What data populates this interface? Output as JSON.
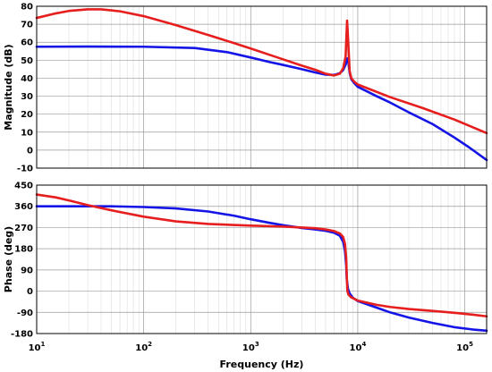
{
  "chart_data": {
    "type": "line",
    "title": "",
    "x_scale": "log",
    "x_range": [
      10,
      160000
    ],
    "xlabel": "Frequency  (Hz)",
    "x_ticks": [
      10,
      100,
      1000,
      10000,
      100000
    ],
    "x_tick_labels": [
      {
        "base": "10",
        "exp": "1"
      },
      {
        "base": "10",
        "exp": "2"
      },
      {
        "base": "10",
        "exp": "3"
      },
      {
        "base": "10",
        "exp": "4"
      },
      {
        "base": "10",
        "exp": "5"
      }
    ],
    "grid": true,
    "colors": {
      "blue": "#1414e6",
      "red": "#e61e1e"
    },
    "panels": [
      {
        "id": "magnitude",
        "ylabel": "Magnitude (dB)",
        "ylim": [
          -10,
          80
        ],
        "y_ticks": [
          -10,
          0,
          10,
          20,
          30,
          40,
          50,
          60,
          70,
          80
        ],
        "series": [
          {
            "color": "#1414e6",
            "points": [
              [
                10,
                57.5
              ],
              [
                30,
                57.6
              ],
              [
                100,
                57.5
              ],
              [
                300,
                56.8
              ],
              [
                600,
                54.5
              ],
              [
                1000,
                51.5
              ],
              [
                1500,
                49.0
              ],
              [
                2000,
                47.4
              ],
              [
                3000,
                45.0
              ],
              [
                4000,
                43.2
              ],
              [
                5000,
                42.0
              ],
              [
                6000,
                41.8
              ],
              [
                6800,
                42.8
              ],
              [
                7300,
                44.5
              ],
              [
                7700,
                47.5
              ],
              [
                8000,
                51.0
              ],
              [
                8200,
                48.5
              ],
              [
                8400,
                43.0
              ],
              [
                8700,
                39.5
              ],
              [
                9200,
                37.5
              ],
              [
                10000,
                35.2
              ],
              [
                15000,
                30.0
              ],
              [
                20000,
                26.5
              ],
              [
                30000,
                21.0
              ],
              [
                50000,
                14.5
              ],
              [
                80000,
                7.0
              ],
              [
                110000,
                1.5
              ],
              [
                160000,
                -5.5
              ]
            ]
          },
          {
            "color": "#e61e1e",
            "points": [
              [
                10,
                73.5
              ],
              [
                15,
                76.0
              ],
              [
                20,
                77.4
              ],
              [
                30,
                78.3
              ],
              [
                40,
                78.3
              ],
              [
                60,
                77.2
              ],
              [
                100,
                74.5
              ],
              [
                200,
                69.5
              ],
              [
                400,
                64.0
              ],
              [
                700,
                59.5
              ],
              [
                1000,
                56.5
              ],
              [
                1500,
                53.0
              ],
              [
                2000,
                50.5
              ],
              [
                3000,
                47.0
              ],
              [
                4000,
                44.7
              ],
              [
                5000,
                42.5
              ],
              [
                6000,
                41.5
              ],
              [
                6800,
                42.5
              ],
              [
                7300,
                45.5
              ],
              [
                7700,
                52.0
              ],
              [
                7950,
                72.0
              ],
              [
                8150,
                60.0
              ],
              [
                8400,
                44.0
              ],
              [
                8700,
                40.0
              ],
              [
                9300,
                38.0
              ],
              [
                10000,
                36.5
              ],
              [
                20000,
                29.5
              ],
              [
                40000,
                23.5
              ],
              [
                80000,
                17.0
              ],
              [
                160000,
                9.5
              ]
            ]
          }
        ]
      },
      {
        "id": "phase",
        "ylabel": "Phase (deg)",
        "ylim": [
          -180,
          450
        ],
        "y_ticks": [
          -180,
          -90,
          0,
          90,
          180,
          270,
          360,
          450
        ],
        "series": [
          {
            "color": "#1414e6",
            "points": [
              [
                10,
                360
              ],
              [
                50,
                360
              ],
              [
                100,
                357
              ],
              [
                200,
                351
              ],
              [
                400,
                338
              ],
              [
                700,
                320
              ],
              [
                1000,
                305
              ],
              [
                1500,
                290
              ],
              [
                2000,
                280
              ],
              [
                3000,
                268
              ],
              [
                4000,
                262
              ],
              [
                5000,
                256
              ],
              [
                6000,
                248
              ],
              [
                6800,
                235
              ],
              [
                7300,
                210
              ],
              [
                7600,
                170
              ],
              [
                7800,
                110
              ],
              [
                7900,
                50
              ],
              [
                8100,
                10
              ],
              [
                8400,
                -10
              ],
              [
                9000,
                -28
              ],
              [
                10000,
                -42
              ],
              [
                15000,
                -70
              ],
              [
                20000,
                -90
              ],
              [
                30000,
                -112
              ],
              [
                50000,
                -135
              ],
              [
                80000,
                -153
              ],
              [
                120000,
                -163
              ],
              [
                160000,
                -168
              ]
            ]
          },
          {
            "color": "#e61e1e",
            "points": [
              [
                10,
                410
              ],
              [
                15,
                398
              ],
              [
                20,
                385
              ],
              [
                30,
                365
              ],
              [
                50,
                343
              ],
              [
                100,
                316
              ],
              [
                200,
                296
              ],
              [
                400,
                285
              ],
              [
                1000,
                278
              ],
              [
                2000,
                274
              ],
              [
                3000,
                270
              ],
              [
                4000,
                267
              ],
              [
                5000,
                262
              ],
              [
                6000,
                255
              ],
              [
                6800,
                245
              ],
              [
                7300,
                230
              ],
              [
                7600,
                200
              ],
              [
                7800,
                140
              ],
              [
                7900,
                60
              ],
              [
                8000,
                0
              ],
              [
                8200,
                -15
              ],
              [
                8600,
                -25
              ],
              [
                9500,
                -35
              ],
              [
                10000,
                -40
              ],
              [
                15000,
                -58
              ],
              [
                20000,
                -67
              ],
              [
                30000,
                -76
              ],
              [
                50000,
                -84
              ],
              [
                80000,
                -92
              ],
              [
                120000,
                -100
              ],
              [
                160000,
                -107
              ]
            ]
          }
        ]
      }
    ]
  }
}
